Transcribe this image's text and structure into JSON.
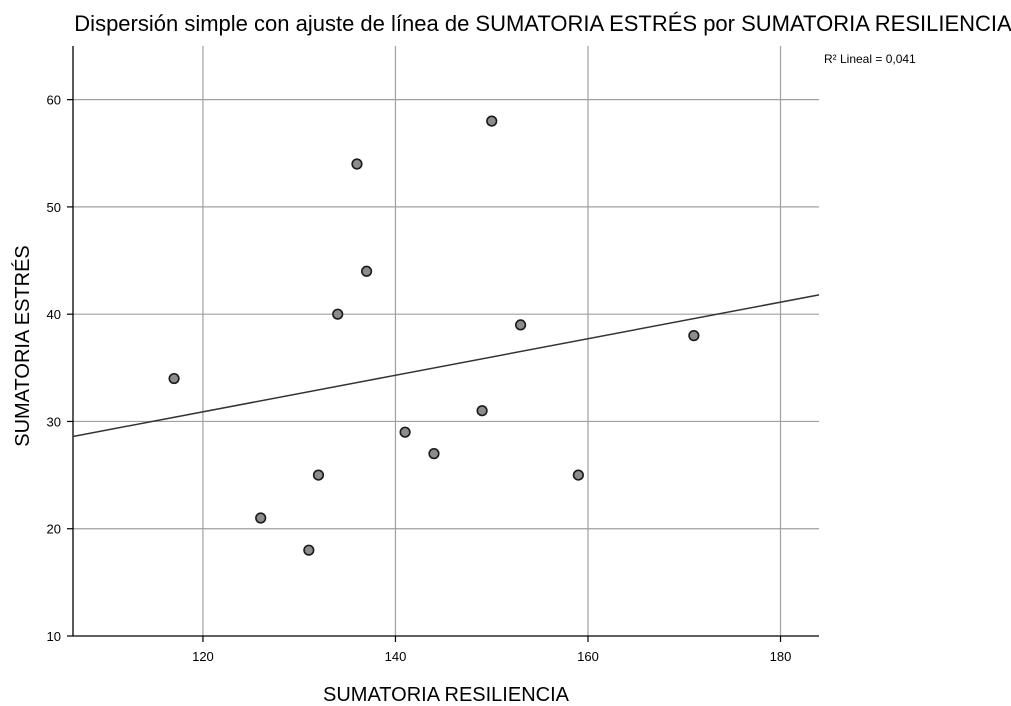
{
  "chart_data": {
    "type": "scatter",
    "title": "Dispersión simple con ajuste de línea de SUMATORIA ESTRÉS por SUMATORIA RESILIENCIA",
    "xlabel": "SUMATORIA RESILIENCIA",
    "ylabel": "SUMATORIA ESTRÉS",
    "xlim": [
      106.5,
      184
    ],
    "ylim": [
      10,
      65
    ],
    "xticks": [
      120,
      140,
      160,
      180
    ],
    "yticks": [
      10,
      20,
      30,
      40,
      50,
      60
    ],
    "xtick_labels": [
      "120",
      "140",
      "160",
      "180"
    ],
    "ytick_labels": [
      "10",
      "20",
      "30",
      "40",
      "50",
      "60"
    ],
    "grid": true,
    "annotation": "R² Lineal = 0,041",
    "points": [
      {
        "x": 117,
        "y": 34
      },
      {
        "x": 126,
        "y": 21
      },
      {
        "x": 131,
        "y": 18
      },
      {
        "x": 132,
        "y": 25
      },
      {
        "x": 134,
        "y": 40
      },
      {
        "x": 136,
        "y": 54
      },
      {
        "x": 137,
        "y": 44
      },
      {
        "x": 141,
        "y": 29
      },
      {
        "x": 144,
        "y": 27
      },
      {
        "x": 149,
        "y": 31
      },
      {
        "x": 150,
        "y": 58
      },
      {
        "x": 153,
        "y": 39
      },
      {
        "x": 159,
        "y": 25
      },
      {
        "x": 171,
        "y": 38
      }
    ],
    "fit_line": {
      "x": [
        106.5,
        184
      ],
      "y": [
        28.6,
        41.8
      ]
    },
    "colors": {
      "marker_fill": "#8c8c8c",
      "marker_stroke": "#1a1a1a",
      "line": "#333333",
      "grid": "#a0a0a0"
    }
  }
}
